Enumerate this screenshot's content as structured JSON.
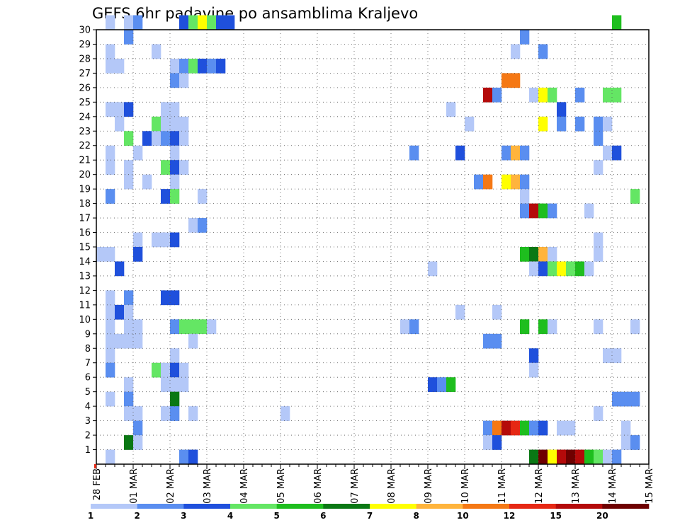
{
  "chart_data": {
    "type": "heatmap",
    "title": "GEFS 6hr padavine po ansamblima Kraljevo",
    "xlabel": "",
    "ylabel": "",
    "x_unit": "6-hour steps from 28 FEB 00Z",
    "x_range": [
      0,
      60
    ],
    "y_ticks": [
      1,
      2,
      3,
      4,
      5,
      6,
      7,
      8,
      9,
      10,
      11,
      12,
      13,
      14,
      15,
      16,
      17,
      18,
      19,
      20,
      21,
      22,
      23,
      24,
      25,
      26,
      27,
      28,
      29,
      30
    ],
    "y_range": [
      0,
      30
    ],
    "grid": true,
    "x_tick_labels": [
      {
        "label": "28 FEB",
        "step": 0
      },
      {
        "label": "01 MAR",
        "step": 4
      },
      {
        "label": "02 MAR",
        "step": 8
      },
      {
        "label": "03 MAR",
        "step": 12
      },
      {
        "label": "04 MAR",
        "step": 16
      },
      {
        "label": "05 MAR",
        "step": 20
      },
      {
        "label": "06 MAR",
        "step": 24
      },
      {
        "label": "07 MAR",
        "step": 28
      },
      {
        "label": "08 MAR",
        "step": 32
      },
      {
        "label": "09 MAR",
        "step": 36
      },
      {
        "label": "10 MAR",
        "step": 40
      },
      {
        "label": "11 MAR",
        "step": 44
      },
      {
        "label": "12 MAR",
        "step": 48
      },
      {
        "label": "13 MAR",
        "step": 52
      },
      {
        "label": "14 MAR",
        "step": 56
      },
      {
        "label": "15 MAR",
        "step": 60
      }
    ],
    "legend": {
      "placement": "bottom",
      "labels": [
        "1",
        "2",
        "3",
        "4",
        "5",
        "6",
        "7",
        "8",
        "10",
        "12",
        "15",
        "20"
      ],
      "colors": [
        "#b4c8f8",
        "#5a8ef0",
        "#1f50dc",
        "#64e664",
        "#1ebe1e",
        "#0a7814",
        "#ffff00",
        "#ffb43c",
        "#f57814",
        "#e62814",
        "#b40a0a",
        "#6e0000"
      ]
    },
    "cells": [
      [
        1,
        30,
        1
      ],
      [
        3,
        30,
        1
      ],
      [
        4,
        30,
        2
      ],
      [
        9,
        30,
        3
      ],
      [
        10,
        30,
        4
      ],
      [
        11,
        30,
        7
      ],
      [
        12,
        30,
        4
      ],
      [
        13,
        30,
        3
      ],
      [
        14,
        30,
        3
      ],
      [
        56,
        30,
        5
      ],
      [
        3,
        29,
        2
      ],
      [
        46,
        29,
        2
      ],
      [
        1,
        28,
        1
      ],
      [
        6,
        28,
        1
      ],
      [
        45,
        28,
        1
      ],
      [
        48,
        28,
        2
      ],
      [
        1,
        27,
        1
      ],
      [
        2,
        27,
        1
      ],
      [
        8,
        27,
        1
      ],
      [
        9,
        27,
        2
      ],
      [
        10,
        27,
        4
      ],
      [
        11,
        27,
        3
      ],
      [
        12,
        27,
        2
      ],
      [
        13,
        27,
        3
      ],
      [
        8,
        26,
        2
      ],
      [
        9,
        26,
        1
      ],
      [
        44,
        26,
        9
      ],
      [
        45,
        26,
        9
      ],
      [
        42,
        25,
        11
      ],
      [
        43,
        25,
        2
      ],
      [
        47,
        25,
        1
      ],
      [
        48,
        25,
        7
      ],
      [
        49,
        25,
        4
      ],
      [
        52,
        25,
        2
      ],
      [
        55,
        25,
        4
      ],
      [
        56,
        25,
        4
      ],
      [
        1,
        24,
        1
      ],
      [
        2,
        24,
        1
      ],
      [
        3,
        24,
        3
      ],
      [
        7,
        24,
        1
      ],
      [
        8,
        24,
        1
      ],
      [
        38,
        24,
        1
      ],
      [
        50,
        24,
        3
      ],
      [
        2,
        23,
        1
      ],
      [
        6,
        23,
        4
      ],
      [
        7,
        23,
        1
      ],
      [
        8,
        23,
        1
      ],
      [
        9,
        23,
        1
      ],
      [
        40,
        23,
        1
      ],
      [
        48,
        23,
        7
      ],
      [
        50,
        23,
        2
      ],
      [
        52,
        23,
        2
      ],
      [
        54,
        23,
        2
      ],
      [
        55,
        23,
        1
      ],
      [
        3,
        22,
        4
      ],
      [
        5,
        22,
        3
      ],
      [
        6,
        22,
        1
      ],
      [
        7,
        22,
        2
      ],
      [
        8,
        22,
        3
      ],
      [
        9,
        22,
        1
      ],
      [
        54,
        22,
        2
      ],
      [
        1,
        21,
        1
      ],
      [
        4,
        21,
        1
      ],
      [
        8,
        21,
        1
      ],
      [
        34,
        21,
        2
      ],
      [
        39,
        21,
        3
      ],
      [
        44,
        21,
        2
      ],
      [
        45,
        21,
        8
      ],
      [
        46,
        21,
        2
      ],
      [
        55,
        21,
        1
      ],
      [
        56,
        21,
        3
      ],
      [
        1,
        20,
        1
      ],
      [
        3,
        20,
        1
      ],
      [
        7,
        20,
        4
      ],
      [
        8,
        20,
        3
      ],
      [
        9,
        20,
        1
      ],
      [
        54,
        20,
        1
      ],
      [
        3,
        19,
        1
      ],
      [
        5,
        19,
        1
      ],
      [
        8,
        19,
        1
      ],
      [
        41,
        19,
        2
      ],
      [
        42,
        19,
        9
      ],
      [
        44,
        19,
        7
      ],
      [
        45,
        19,
        8
      ],
      [
        46,
        19,
        2
      ],
      [
        1,
        18,
        2
      ],
      [
        7,
        18,
        3
      ],
      [
        8,
        18,
        4
      ],
      [
        11,
        18,
        1
      ],
      [
        46,
        18,
        1
      ],
      [
        58,
        18,
        4
      ],
      [
        46,
        17,
        2
      ],
      [
        47,
        17,
        11
      ],
      [
        48,
        17,
        5
      ],
      [
        49,
        17,
        2
      ],
      [
        53,
        17,
        1
      ],
      [
        10,
        16,
        1
      ],
      [
        11,
        16,
        2
      ],
      [
        4,
        15,
        1
      ],
      [
        6,
        15,
        1
      ],
      [
        7,
        15,
        1
      ],
      [
        8,
        15,
        3
      ],
      [
        54,
        15,
        1
      ],
      [
        0,
        14,
        1
      ],
      [
        1,
        14,
        1
      ],
      [
        4,
        14,
        3
      ],
      [
        46,
        14,
        5
      ],
      [
        47,
        14,
        6
      ],
      [
        48,
        14,
        8
      ],
      [
        49,
        14,
        1
      ],
      [
        54,
        14,
        1
      ],
      [
        2,
        13,
        3
      ],
      [
        47,
        13,
        1
      ],
      [
        48,
        13,
        3
      ],
      [
        49,
        13,
        4
      ],
      [
        50,
        13,
        7
      ],
      [
        51,
        13,
        4
      ],
      [
        52,
        13,
        5
      ],
      [
        53,
        13,
        1
      ],
      [
        36,
        13,
        1
      ],
      [
        1,
        11,
        1
      ],
      [
        3,
        11,
        2
      ],
      [
        7,
        11,
        3
      ],
      [
        8,
        11,
        3
      ],
      [
        1,
        10,
        1
      ],
      [
        2,
        10,
        3
      ],
      [
        3,
        10,
        1
      ],
      [
        39,
        10,
        1
      ],
      [
        43,
        10,
        1
      ],
      [
        1,
        9,
        1
      ],
      [
        3,
        9,
        1
      ],
      [
        4,
        9,
        1
      ],
      [
        8,
        9,
        2
      ],
      [
        9,
        9,
        4
      ],
      [
        10,
        9,
        4
      ],
      [
        11,
        9,
        4
      ],
      [
        12,
        9,
        1
      ],
      [
        33,
        9,
        1
      ],
      [
        34,
        9,
        2
      ],
      [
        46,
        9,
        5
      ],
      [
        48,
        9,
        5
      ],
      [
        49,
        9,
        1
      ],
      [
        54,
        9,
        1
      ],
      [
        58,
        9,
        1
      ],
      [
        1,
        8,
        1
      ],
      [
        2,
        8,
        1
      ],
      [
        3,
        8,
        1
      ],
      [
        4,
        8,
        1
      ],
      [
        10,
        8,
        1
      ],
      [
        42,
        8,
        2
      ],
      [
        43,
        8,
        2
      ],
      [
        1,
        7,
        1
      ],
      [
        8,
        7,
        1
      ],
      [
        47,
        7,
        3
      ],
      [
        55,
        7,
        1
      ],
      [
        56,
        7,
        1
      ],
      [
        1,
        6,
        2
      ],
      [
        6,
        6,
        4
      ],
      [
        7,
        6,
        1
      ],
      [
        8,
        6,
        3
      ],
      [
        9,
        6,
        1
      ],
      [
        47,
        6,
        1
      ],
      [
        3,
        5,
        1
      ],
      [
        7,
        5,
        1
      ],
      [
        8,
        5,
        1
      ],
      [
        9,
        5,
        1
      ],
      [
        36,
        5,
        3
      ],
      [
        37,
        5,
        2
      ],
      [
        38,
        5,
        5
      ],
      [
        1,
        4,
        1
      ],
      [
        3,
        4,
        2
      ],
      [
        8,
        4,
        6
      ],
      [
        56,
        4,
        2
      ],
      [
        57,
        4,
        2
      ],
      [
        58,
        4,
        2
      ],
      [
        3,
        3,
        1
      ],
      [
        4,
        3,
        1
      ],
      [
        7,
        3,
        1
      ],
      [
        8,
        3,
        2
      ],
      [
        10,
        3,
        1
      ],
      [
        20,
        3,
        1
      ],
      [
        54,
        3,
        1
      ],
      [
        4,
        2,
        2
      ],
      [
        42,
        2,
        2
      ],
      [
        43,
        2,
        9
      ],
      [
        44,
        2,
        11
      ],
      [
        45,
        2,
        10
      ],
      [
        46,
        2,
        5
      ],
      [
        47,
        2,
        2
      ],
      [
        48,
        2,
        3
      ],
      [
        50,
        2,
        1
      ],
      [
        51,
        2,
        1
      ],
      [
        57,
        2,
        1
      ],
      [
        3,
        1,
        6
      ],
      [
        4,
        1,
        1
      ],
      [
        42,
        1,
        1
      ],
      [
        43,
        1,
        3
      ],
      [
        57,
        1,
        1
      ],
      [
        58,
        1,
        2
      ],
      [
        1,
        0,
        1
      ],
      [
        9,
        0,
        2
      ],
      [
        10,
        0,
        3
      ],
      [
        47,
        0,
        6
      ],
      [
        48,
        0,
        12
      ],
      [
        49,
        0,
        7
      ],
      [
        50,
        0,
        11
      ],
      [
        51,
        0,
        12
      ],
      [
        52,
        0,
        11
      ],
      [
        53,
        0,
        5
      ],
      [
        54,
        0,
        4
      ],
      [
        55,
        0,
        1
      ],
      [
        56,
        0,
        2
      ]
    ]
  }
}
